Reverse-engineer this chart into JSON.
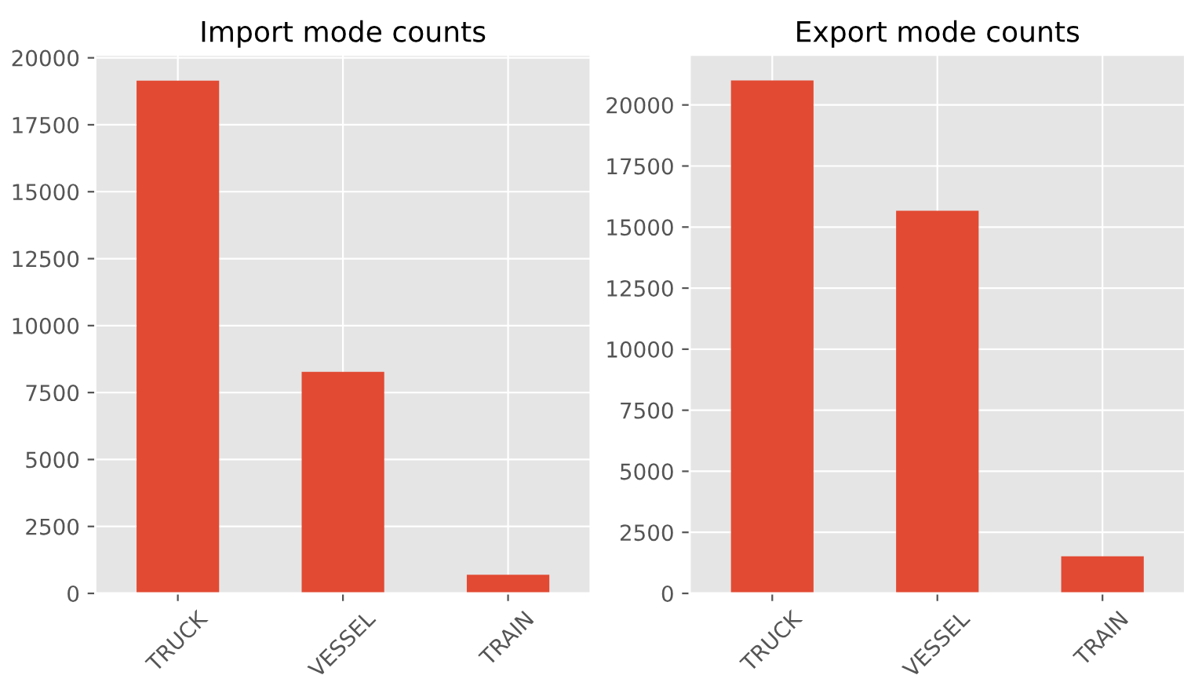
{
  "chart_data": [
    {
      "type": "bar",
      "title": "Import mode counts",
      "categories": [
        "TRUCK",
        "VESSEL",
        "TRAIN"
      ],
      "values": [
        19150,
        8270,
        700
      ],
      "color": "#e24a33",
      "ylim": [
        0,
        20110
      ],
      "yticks": [
        0,
        2500,
        5000,
        7500,
        10000,
        12500,
        15000,
        17500,
        20000
      ],
      "grid": true
    },
    {
      "type": "bar",
      "title": "Export mode counts",
      "categories": [
        "TRUCK",
        "VESSEL",
        "TRAIN"
      ],
      "values": [
        21000,
        15670,
        1520
      ],
      "color": "#e24a33",
      "ylim": [
        0,
        22050
      ],
      "yticks": [
        0,
        2500,
        5000,
        7500,
        10000,
        12500,
        15000,
        17500,
        20000
      ],
      "grid": true
    }
  ]
}
